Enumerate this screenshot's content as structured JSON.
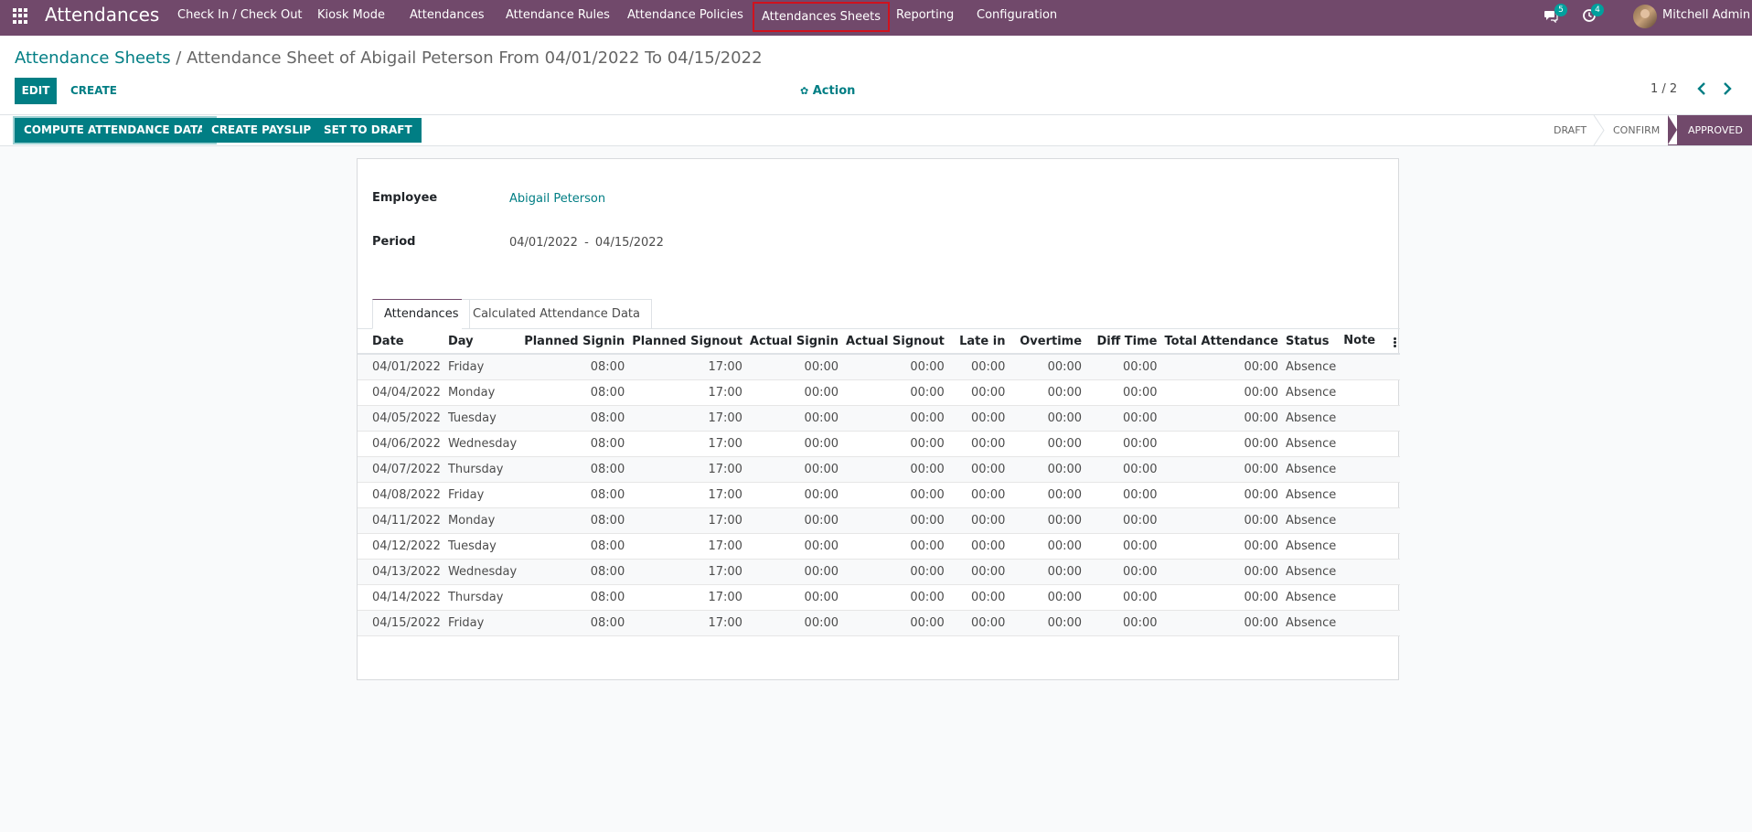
{
  "navbar": {
    "brand": "Attendances",
    "menu": [
      "Check In / Check Out",
      "Kiosk Mode",
      "Attendances",
      "Attendance Rules",
      "Attendance Policies",
      "Attendances Sheets",
      "Reporting",
      "Configuration"
    ],
    "messages_count": "5",
    "activities_count": "4",
    "user_name": "Mitchell Admin"
  },
  "control_panel": {
    "breadcrumb_parent": "Attendance Sheets",
    "breadcrumb_separator": " / ",
    "breadcrumb_current": "Attendance Sheet of Abigail Peterson From 04/01/2022 To 04/15/2022",
    "edit_label": "Edit",
    "create_label": "Create",
    "action_label": "Action",
    "pager": "1 / 2"
  },
  "statusbar": {
    "compute_label": "Compute Attendance Data",
    "payslip_label": "Create Payslip",
    "draft_label": "Set To Draft",
    "stages": [
      "Draft",
      "Confirm",
      "Approved"
    ],
    "current_stage": "Approved"
  },
  "form": {
    "employee_label": "Employee",
    "employee_value": "Abigail Peterson",
    "period_label": "Period",
    "period_start": "04/01/2022",
    "period_sep": "-",
    "period_end": "04/15/2022"
  },
  "tabs": [
    "Attendances",
    "Calculated Attendance Data"
  ],
  "table": {
    "headers": [
      "Date",
      "Day",
      "Planned Signin",
      "Planned Signout",
      "Actual Signin",
      "Actual Signout",
      "Late in",
      "Overtime",
      "Diff Time",
      "Total Attendance",
      "Status",
      "Note"
    ],
    "rows": [
      [
        "04/01/2022",
        "Friday",
        "08:00",
        "17:00",
        "00:00",
        "00:00",
        "00:00",
        "00:00",
        "00:00",
        "00:00",
        "Absence",
        ""
      ],
      [
        "04/04/2022",
        "Monday",
        "08:00",
        "17:00",
        "00:00",
        "00:00",
        "00:00",
        "00:00",
        "00:00",
        "00:00",
        "Absence",
        ""
      ],
      [
        "04/05/2022",
        "Tuesday",
        "08:00",
        "17:00",
        "00:00",
        "00:00",
        "00:00",
        "00:00",
        "00:00",
        "00:00",
        "Absence",
        ""
      ],
      [
        "04/06/2022",
        "Wednesday",
        "08:00",
        "17:00",
        "00:00",
        "00:00",
        "00:00",
        "00:00",
        "00:00",
        "00:00",
        "Absence",
        ""
      ],
      [
        "04/07/2022",
        "Thursday",
        "08:00",
        "17:00",
        "00:00",
        "00:00",
        "00:00",
        "00:00",
        "00:00",
        "00:00",
        "Absence",
        ""
      ],
      [
        "04/08/2022",
        "Friday",
        "08:00",
        "17:00",
        "00:00",
        "00:00",
        "00:00",
        "00:00",
        "00:00",
        "00:00",
        "Absence",
        ""
      ],
      [
        "04/11/2022",
        "Monday",
        "08:00",
        "17:00",
        "00:00",
        "00:00",
        "00:00",
        "00:00",
        "00:00",
        "00:00",
        "Absence",
        ""
      ],
      [
        "04/12/2022",
        "Tuesday",
        "08:00",
        "17:00",
        "00:00",
        "00:00",
        "00:00",
        "00:00",
        "00:00",
        "00:00",
        "Absence",
        ""
      ],
      [
        "04/13/2022",
        "Wednesday",
        "08:00",
        "17:00",
        "00:00",
        "00:00",
        "00:00",
        "00:00",
        "00:00",
        "00:00",
        "Absence",
        ""
      ],
      [
        "04/14/2022",
        "Thursday",
        "08:00",
        "17:00",
        "00:00",
        "00:00",
        "00:00",
        "00:00",
        "00:00",
        "00:00",
        "Absence",
        ""
      ],
      [
        "04/15/2022",
        "Friday",
        "08:00",
        "17:00",
        "00:00",
        "00:00",
        "00:00",
        "00:00",
        "00:00",
        "00:00",
        "Absence",
        ""
      ]
    ]
  },
  "colors": {
    "navbar": "#71496b",
    "primary": "#017e84",
    "highlight": "#d0121e",
    "badge": "#00a09d"
  },
  "icons": [
    "apps-grid-icon",
    "chat-icon",
    "clock-icon",
    "gear-icon",
    "chevron-left-icon",
    "chevron-right-icon",
    "kebab-icon"
  ]
}
